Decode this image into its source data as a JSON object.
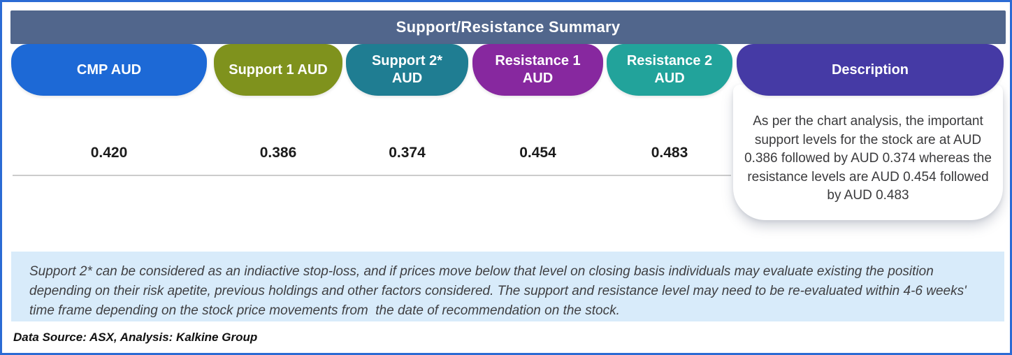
{
  "header": {
    "title": "Support/Resistance Summary"
  },
  "table": {
    "columns": [
      {
        "label": "CMP AUD",
        "value": "0.420",
        "color": "#1D69D6"
      },
      {
        "label": "Support 1 AUD",
        "value": "0.386",
        "color": "#7F921D"
      },
      {
        "label": "Support 2* AUD",
        "value": "0.374",
        "color": "#1F7D92"
      },
      {
        "label": "Resistance 1 AUD",
        "value": "0.454",
        "color": "#87289F"
      },
      {
        "label": "Resistance 2 AUD",
        "value": "0.483",
        "color": "#22A39B"
      }
    ],
    "description_column": {
      "label": "Description",
      "color": "#453AA5",
      "text": "As per the chart analysis, the important support levels for the stock are at AUD 0.386 followed by AUD 0.374 whereas the resistance levels are AUD 0.454 followed by AUD 0.483"
    }
  },
  "footnote": "Support 2* can be considered as an indiactive stop-loss, and if prices move below that level on closing basis individuals may evaluate existing the position depending on their risk apetite, previous holdings and other factors considered. The support and resistance level may need to be re-evaluated within 4-6 weeks' time frame depending on the stock price movements from  the date of recommendation on the stock.",
  "source_line": "Data Source: ASX, Analysis: Kalkine Group",
  "theme": {
    "border": "#2B6BD4",
    "title_bar": "#51668C",
    "footnote_bg": "#D8EBFA",
    "separator": "#CCCCCC"
  }
}
